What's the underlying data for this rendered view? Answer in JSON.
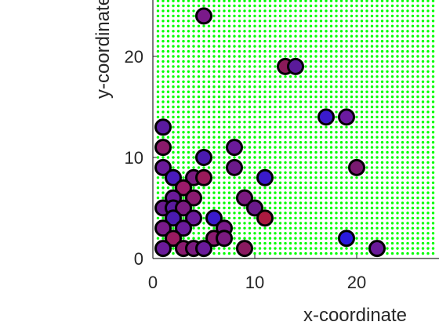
{
  "chart_data": {
    "type": "scatter",
    "xlabel": "x-coordinate",
    "ylabel": "y-coordinate",
    "xlim": [
      0,
      28
    ],
    "ylim": [
      0,
      25
    ],
    "xticks": [
      0,
      10,
      20
    ],
    "yticks": [
      0,
      10,
      20
    ],
    "background_grid": {
      "color": "#00ff00",
      "spacing": 0.5
    },
    "marker_edge_color": "#000000",
    "points": [
      {
        "x": 5,
        "y": 24,
        "color": "#7a1a8a"
      },
      {
        "x": 13,
        "y": 19,
        "color": "#8a1a5a"
      },
      {
        "x": 14,
        "y": 19,
        "color": "#5a1a9a"
      },
      {
        "x": 17,
        "y": 14,
        "color": "#3a1acc"
      },
      {
        "x": 19,
        "y": 14,
        "color": "#6a1aa0"
      },
      {
        "x": 1,
        "y": 13,
        "color": "#5a1aa0"
      },
      {
        "x": 1,
        "y": 11,
        "color": "#8a1a6a"
      },
      {
        "x": 8,
        "y": 11,
        "color": "#6a1a9a"
      },
      {
        "x": 5,
        "y": 10,
        "color": "#4a1ab0"
      },
      {
        "x": 1,
        "y": 9,
        "color": "#6a1a9a"
      },
      {
        "x": 8,
        "y": 9,
        "color": "#6a1a8a"
      },
      {
        "x": 20,
        "y": 9,
        "color": "#7a1a70"
      },
      {
        "x": 2,
        "y": 8,
        "color": "#4a1abb"
      },
      {
        "x": 4,
        "y": 8,
        "color": "#7a1a80"
      },
      {
        "x": 5,
        "y": 8,
        "color": "#9a1a5a"
      },
      {
        "x": 11,
        "y": 8,
        "color": "#3a1acc"
      },
      {
        "x": 3,
        "y": 7,
        "color": "#9a1a6a"
      },
      {
        "x": 2,
        "y": 6,
        "color": "#6a1a9a"
      },
      {
        "x": 4,
        "y": 6,
        "color": "#8a1a70"
      },
      {
        "x": 9,
        "y": 6,
        "color": "#7a1a80"
      },
      {
        "x": 1,
        "y": 5,
        "color": "#6a1a90"
      },
      {
        "x": 2,
        "y": 5,
        "color": "#5a1aa0"
      },
      {
        "x": 3,
        "y": 5,
        "color": "#7a1a80"
      },
      {
        "x": 10,
        "y": 5,
        "color": "#6a1a8a"
      },
      {
        "x": 2,
        "y": 4,
        "color": "#4a1ab0"
      },
      {
        "x": 4,
        "y": 4,
        "color": "#6a1a9a"
      },
      {
        "x": 6,
        "y": 4,
        "color": "#3a1acc"
      },
      {
        "x": 11,
        "y": 4,
        "color": "#aa1a40"
      },
      {
        "x": 1,
        "y": 3,
        "color": "#7a1a8a"
      },
      {
        "x": 3,
        "y": 3,
        "color": "#6a1a9a"
      },
      {
        "x": 7,
        "y": 3,
        "color": "#7a1a8a"
      },
      {
        "x": 2,
        "y": 2,
        "color": "#9a1a60"
      },
      {
        "x": 6,
        "y": 2,
        "color": "#8a1a70"
      },
      {
        "x": 7,
        "y": 2,
        "color": "#7a1a80"
      },
      {
        "x": 19,
        "y": 2,
        "color": "#2a1add"
      },
      {
        "x": 1,
        "y": 1,
        "color": "#6a1a9a"
      },
      {
        "x": 3,
        "y": 1,
        "color": "#8a1a70"
      },
      {
        "x": 4,
        "y": 1,
        "color": "#7a1a80"
      },
      {
        "x": 5,
        "y": 1,
        "color": "#6a1a9a"
      },
      {
        "x": 9,
        "y": 1,
        "color": "#8a1a60"
      },
      {
        "x": 22,
        "y": 1,
        "color": "#6a1a9a"
      }
    ]
  }
}
